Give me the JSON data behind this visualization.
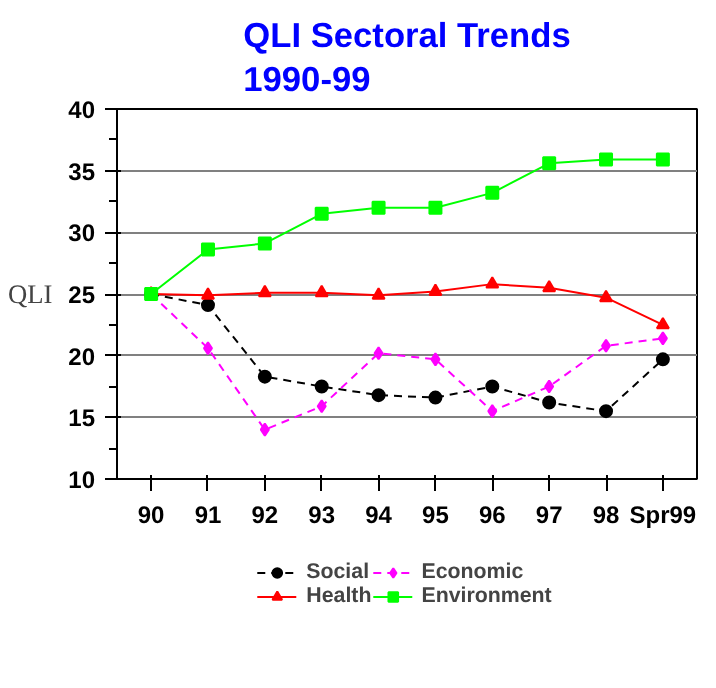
{
  "chart_data": {
    "type": "line",
    "title": "QLI Sectoral Trends\n1990-99",
    "ylabel": "QLI",
    "categories": [
      "90",
      "91",
      "92",
      "93",
      "94",
      "95",
      "96",
      "97",
      "98",
      "Spr99"
    ],
    "series": [
      {
        "name": "Social",
        "color": "#000000",
        "marker": "circle",
        "line_style": "dashed",
        "values": [
          25,
          24.1,
          18.3,
          17.5,
          16.8,
          16.6,
          17.5,
          16.2,
          15.5,
          19.7
        ]
      },
      {
        "name": "Economic",
        "color": "#ff00ff",
        "marker": "diamond",
        "line_style": "dashed",
        "values": [
          25,
          20.6,
          14.0,
          15.9,
          20.2,
          19.7,
          15.5,
          17.5,
          20.8,
          21.4
        ]
      },
      {
        "name": "Health",
        "color": "#ff0000",
        "marker": "triangle",
        "line_style": "solid",
        "values": [
          25,
          24.9,
          25.1,
          25.1,
          24.9,
          25.2,
          25.8,
          25.5,
          24.7,
          22.5
        ]
      },
      {
        "name": "Environment",
        "color": "#00ff00",
        "marker": "square",
        "line_style": "solid",
        "values": [
          25,
          28.6,
          29.1,
          31.5,
          32.0,
          32.0,
          33.2,
          35.6,
          35.9,
          35.9
        ]
      }
    ],
    "ylim": [
      10,
      40
    ],
    "yticks": [
      10,
      15,
      20,
      25,
      30,
      35,
      40
    ],
    "grid": "y",
    "legend": "bottom"
  }
}
